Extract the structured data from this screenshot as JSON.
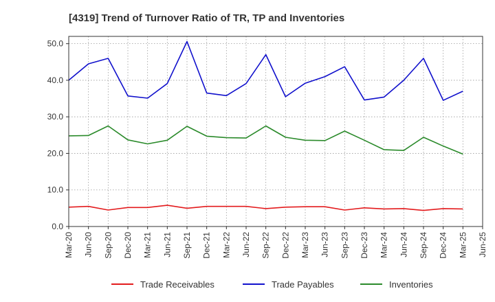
{
  "chart_data": {
    "type": "line",
    "title": "[4319]  Trend of Turnover Ratio of TR, TP and Inventories",
    "xlabel": "",
    "ylabel": "",
    "ylim": [
      0,
      52
    ],
    "y_ticks": [
      "0.0",
      "10.0",
      "20.0",
      "30.0",
      "40.0",
      "50.0"
    ],
    "y_tick_values": [
      0,
      10,
      20,
      30,
      40,
      50
    ],
    "grid": true,
    "legend_position": "bottom",
    "x": [
      "Mar-20",
      "Jun-20",
      "Sep-20",
      "Dec-20",
      "Mar-21",
      "Jun-21",
      "Sep-21",
      "Dec-21",
      "Mar-22",
      "Jun-22",
      "Sep-22",
      "Dec-22",
      "Mar-23",
      "Jun-23",
      "Sep-23",
      "Dec-23",
      "Mar-24",
      "Jun-24",
      "Sep-24",
      "Dec-24",
      "Mar-25",
      "Jun-25"
    ],
    "series": [
      {
        "name": "Trade Receivables",
        "color": "#e31a1c",
        "values": [
          5.3,
          5.5,
          4.5,
          5.2,
          5.2,
          5.8,
          5.0,
          5.5,
          5.5,
          5.5,
          4.9,
          5.3,
          5.4,
          5.4,
          4.5,
          5.1,
          4.8,
          4.9,
          4.4,
          4.9,
          4.8,
          null
        ]
      },
      {
        "name": "Trade Payables",
        "color": "#1010cc",
        "values": [
          40.0,
          44.5,
          46.0,
          35.7,
          35.1,
          39.1,
          50.6,
          36.5,
          35.8,
          39.1,
          47.0,
          35.5,
          39.2,
          41.0,
          43.7,
          34.6,
          35.4,
          40.0,
          46.0,
          34.5,
          37.0,
          null
        ]
      },
      {
        "name": "Inventories",
        "color": "#2a8a2a",
        "values": [
          24.8,
          24.9,
          27.5,
          23.7,
          22.6,
          23.6,
          27.4,
          24.7,
          24.3,
          24.2,
          27.5,
          24.4,
          23.6,
          23.5,
          26.1,
          23.6,
          21.0,
          20.8,
          24.4,
          22.0,
          19.8,
          null
        ]
      }
    ]
  }
}
